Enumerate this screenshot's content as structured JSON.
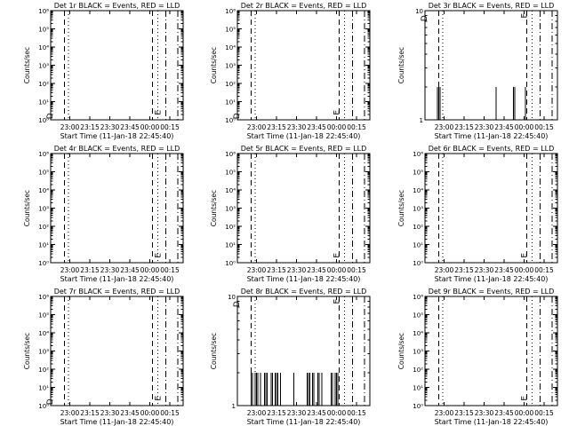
{
  "chart_data": [
    {
      "type": "bar",
      "title": "Det 1r BLACK = Events, RED = LLD",
      "xlabel": "Start Time (11-Jan-18 22:45:40)",
      "ylabel": "Counts/sec",
      "xticks": [
        "23:00",
        "23:15",
        "23:30",
        "23:45",
        "00:00",
        "00:15"
      ],
      "yscale": "log",
      "ylim": [
        1,
        1000000
      ],
      "ytick_labels": [
        "10⁰",
        "10¹",
        "10²",
        "10³",
        "10⁴",
        "10⁵",
        "10⁶"
      ],
      "markers": [
        {
          "time": "22:56",
          "style": "dashed"
        },
        {
          "time": "22:59",
          "style": "dotted"
        },
        {
          "time": "00:02",
          "style": "dashed"
        },
        {
          "time": "00:06",
          "style": "dotted"
        },
        {
          "time": "00:12",
          "style": "dashdot"
        },
        {
          "time": "00:21",
          "style": "dashdot"
        }
      ],
      "annotations": [
        {
          "text": "D",
          "time": "22:47",
          "y": 1.6
        },
        {
          "text": "E",
          "time": "00:08",
          "y": 2.5
        }
      ],
      "series": [
        {
          "x": [],
          "values": []
        }
      ]
    },
    {
      "type": "bar",
      "title": "Det 2r BLACK = Events, RED = LLD",
      "xlabel": "Start Time (11-Jan-18 22:45:40)",
      "ylabel": "Counts/sec",
      "xticks": [
        "23:00",
        "23:15",
        "23:30",
        "23:45",
        "00:00",
        "00:15"
      ],
      "yscale": "log",
      "ylim": [
        1,
        1000000
      ],
      "ytick_labels": [
        "10⁰",
        "10¹",
        "10²",
        "10³",
        "10⁴",
        "10⁵",
        "10⁶"
      ],
      "markers": [
        {
          "time": "22:56",
          "style": "dashed"
        },
        {
          "time": "22:59",
          "style": "dotted"
        },
        {
          "time": "00:02",
          "style": "dashed"
        },
        {
          "time": "00:06",
          "style": "dotted"
        },
        {
          "time": "00:12",
          "style": "dashdot"
        },
        {
          "time": "00:21",
          "style": "dashdot"
        }
      ],
      "annotations": [
        {
          "text": "D",
          "time": "22:47",
          "y": 1.6
        },
        {
          "text": "E",
          "time": "00:02",
          "y": 2.5
        }
      ],
      "series": [
        {
          "x": [],
          "values": []
        }
      ]
    },
    {
      "type": "bar",
      "title": "Det 3r BLACK = Events, RED = LLD",
      "xlabel": "Start Time (11-Jan-18 22:45:40)",
      "ylabel": "Counts/sec",
      "xticks": [
        "23:00",
        "23:15",
        "23:30",
        "23:45",
        "00:00",
        "00:15"
      ],
      "yscale": "log",
      "ylim": [
        1,
        10
      ],
      "ytick_labels": [
        "1",
        "10"
      ],
      "markers": [
        {
          "time": "22:56",
          "style": "dashed"
        },
        {
          "time": "22:59",
          "style": "dotted"
        },
        {
          "time": "00:02",
          "style": "dashed"
        },
        {
          "time": "00:06",
          "style": "dotted"
        },
        {
          "time": "00:12",
          "style": "dashdot"
        },
        {
          "time": "00:21",
          "style": "dashdot"
        }
      ],
      "annotations": [
        {
          "text": "D",
          "time": "22:47",
          "y": 8.5
        },
        {
          "text": "E",
          "time": "00:02",
          "y": 9.0
        }
      ],
      "series": [
        {
          "x": [
            "22:55",
            "22:56",
            "22:57",
            "23:39",
            "23:52",
            "23:53",
            "00:01"
          ],
          "values": [
            2,
            2,
            2,
            2,
            2,
            2,
            2
          ]
        }
      ]
    },
    {
      "type": "bar",
      "title": "Det 4r BLACK = Events, RED = LLD",
      "xlabel": "Start Time (11-Jan-18 22:45:40)",
      "ylabel": "Counts/sec",
      "xticks": [
        "23:00",
        "23:15",
        "23:30",
        "23:45",
        "00:00",
        "00:15"
      ],
      "yscale": "log",
      "ylim": [
        1,
        1000000
      ],
      "ytick_labels": [
        "10⁰",
        "10¹",
        "10²",
        "10³",
        "10⁴",
        "10⁵",
        "10⁶"
      ],
      "markers": [
        {
          "time": "22:56",
          "style": "dashed"
        },
        {
          "time": "22:59",
          "style": "dotted"
        },
        {
          "time": "00:02",
          "style": "dashed"
        },
        {
          "time": "00:06",
          "style": "dotted"
        },
        {
          "time": "00:12",
          "style": "dashdot"
        },
        {
          "time": "00:21",
          "style": "dashdot"
        }
      ],
      "annotations": [
        {
          "text": "E",
          "time": "00:08",
          "y": 2.5
        }
      ],
      "series": [
        {
          "x": [],
          "values": []
        }
      ]
    },
    {
      "type": "bar",
      "title": "Det 5r BLACK = Events, RED = LLD",
      "xlabel": "Start Time (11-Jan-18 22:45:40)",
      "ylabel": "Counts/sec",
      "xticks": [
        "23:00",
        "23:15",
        "23:30",
        "23:45",
        "00:00",
        "00:15"
      ],
      "yscale": "log",
      "ylim": [
        1,
        1000000
      ],
      "ytick_labels": [
        "10⁰",
        "10¹",
        "10²",
        "10³",
        "10⁴",
        "10⁵",
        "10⁶"
      ],
      "markers": [
        {
          "time": "22:56",
          "style": "dashed"
        },
        {
          "time": "22:59",
          "style": "dotted"
        },
        {
          "time": "00:02",
          "style": "dashed"
        },
        {
          "time": "00:06",
          "style": "dotted"
        },
        {
          "time": "00:12",
          "style": "dashdot"
        },
        {
          "time": "00:21",
          "style": "dashdot"
        }
      ],
      "annotations": [
        {
          "text": "E",
          "time": "00:02",
          "y": 2.5
        }
      ],
      "series": [
        {
          "x": [],
          "values": []
        }
      ]
    },
    {
      "type": "bar",
      "title": "Det 6r BLACK = Events, RED = LLD",
      "xlabel": "Start Time (11-Jan-18 22:45:40)",
      "ylabel": "Counts/sec",
      "xticks": [
        "23:00",
        "23:15",
        "23:30",
        "23:45",
        "00:00",
        "00:15"
      ],
      "yscale": "log",
      "ylim": [
        1,
        1000000
      ],
      "ytick_labels": [
        "10⁰",
        "10¹",
        "10²",
        "10³",
        "10⁴",
        "10⁵",
        "10⁶"
      ],
      "markers": [
        {
          "time": "22:56",
          "style": "dashed"
        },
        {
          "time": "22:59",
          "style": "dotted"
        },
        {
          "time": "00:02",
          "style": "dashed"
        },
        {
          "time": "00:06",
          "style": "dotted"
        },
        {
          "time": "00:12",
          "style": "dashdot"
        },
        {
          "time": "00:21",
          "style": "dashdot"
        }
      ],
      "annotations": [
        {
          "text": "E",
          "time": "00:02",
          "y": 2.5
        }
      ],
      "series": [
        {
          "x": [],
          "values": []
        }
      ]
    },
    {
      "type": "bar",
      "title": "Det 7r BLACK = Events, RED = LLD",
      "xlabel": "Start Time (11-Jan-18 22:45:40)",
      "ylabel": "Counts/sec",
      "xticks": [
        "23:00",
        "23:15",
        "23:30",
        "23:45",
        "00:00",
        "00:15"
      ],
      "yscale": "log",
      "ylim": [
        1,
        1000000
      ],
      "ytick_labels": [
        "10⁰",
        "10¹",
        "10²",
        "10³",
        "10⁴",
        "10⁵",
        "10⁶"
      ],
      "markers": [
        {
          "time": "22:56",
          "style": "dashed"
        },
        {
          "time": "22:59",
          "style": "dotted"
        },
        {
          "time": "00:02",
          "style": "dashed"
        },
        {
          "time": "00:06",
          "style": "dotted"
        },
        {
          "time": "00:12",
          "style": "dashdot"
        },
        {
          "time": "00:21",
          "style": "dashdot"
        }
      ],
      "annotations": [
        {
          "text": "D",
          "time": "22:47",
          "y": 1.6
        },
        {
          "text": "E",
          "time": "00:08",
          "y": 2.5
        }
      ],
      "series": [
        {
          "x": [],
          "values": []
        }
      ]
    },
    {
      "type": "bar",
      "title": "Det 8r BLACK = Events, RED = LLD",
      "xlabel": "Start Time (11-Jan-18 22:45:40)",
      "ylabel": "Counts/sec",
      "xticks": [
        "23:00",
        "23:15",
        "23:30",
        "23:45",
        "00:00",
        "00:15"
      ],
      "yscale": "log",
      "ylim": [
        1,
        10
      ],
      "ytick_labels": [
        "1",
        "10"
      ],
      "markers": [
        {
          "time": "22:56",
          "style": "dashed"
        },
        {
          "time": "22:59",
          "style": "dotted"
        },
        {
          "time": "00:02",
          "style": "dashed"
        },
        {
          "time": "00:06",
          "style": "dotted"
        },
        {
          "time": "00:12",
          "style": "dashdot"
        },
        {
          "time": "00:21",
          "style": "dashdot"
        }
      ],
      "annotations": [
        {
          "text": "D",
          "time": "22:47",
          "y": 8.5
        },
        {
          "text": "E",
          "time": "00:02",
          "y": 9.0
        }
      ],
      "series": [
        {
          "x": [
            "22:56",
            "22:57",
            "22:59",
            "23:00",
            "23:01",
            "23:03",
            "23:06",
            "23:07",
            "23:08",
            "23:11",
            "23:12",
            "23:14",
            "23:15",
            "23:16",
            "23:18",
            "23:28",
            "23:38",
            "23:39",
            "23:40",
            "23:42",
            "23:43",
            "23:46",
            "23:47",
            "23:49",
            "23:56",
            "23:57",
            "23:59",
            "00:00",
            "00:01"
          ],
          "values": [
            2,
            2,
            2,
            2,
            2,
            2,
            2,
            2,
            2,
            2,
            2,
            2,
            2,
            2,
            2,
            2,
            2,
            2,
            2,
            2,
            2,
            2,
            2,
            2,
            2,
            2,
            2,
            2,
            2
          ]
        }
      ]
    },
    {
      "type": "bar",
      "title": "Det 9r BLACK = Events, RED = LLD",
      "xlabel": "Start Time (11-Jan-18 22:45:40)",
      "ylabel": "Counts/sec",
      "xticks": [
        "23:00",
        "23:15",
        "23:30",
        "23:45",
        "00:00",
        "00:15"
      ],
      "yscale": "log",
      "ylim": [
        1,
        1000000
      ],
      "ytick_labels": [
        "10⁰",
        "10¹",
        "10²",
        "10³",
        "10⁴",
        "10⁵",
        "10⁶"
      ],
      "markers": [
        {
          "time": "22:56",
          "style": "dashed"
        },
        {
          "time": "22:59",
          "style": "dotted"
        },
        {
          "time": "00:02",
          "style": "dashed"
        },
        {
          "time": "00:06",
          "style": "dotted"
        },
        {
          "time": "00:12",
          "style": "dashdot"
        },
        {
          "time": "00:21",
          "style": "dashdot"
        }
      ],
      "annotations": [
        {
          "text": "E",
          "time": "00:02",
          "y": 2.5
        }
      ],
      "series": [
        {
          "x": [],
          "values": []
        }
      ]
    }
  ]
}
